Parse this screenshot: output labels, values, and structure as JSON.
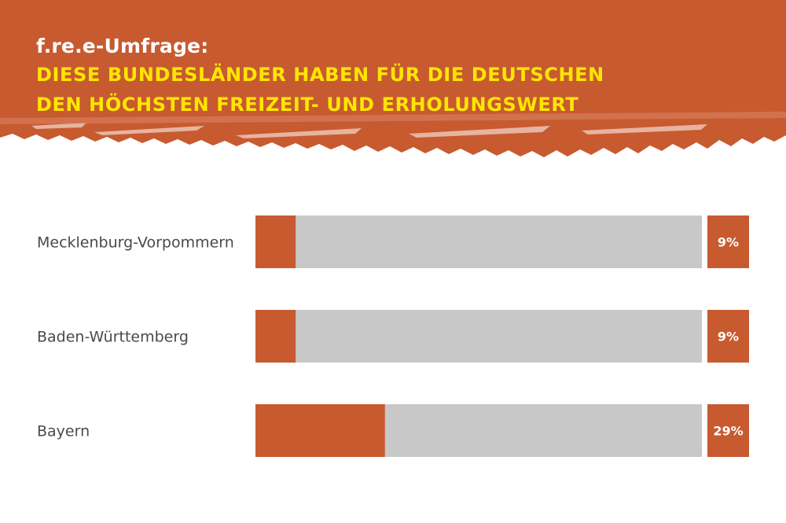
{
  "header": {
    "subtitle": "f.re.e-Umfrage:",
    "headline_line1": "DIESE BUNDESLÄNDER HABEN FÜR DIE DEUTSCHEN",
    "headline_line2": "DEN HÖCHSTEN FREIZEIT- UND ERHOLUNGSWERT"
  },
  "colors": {
    "accent": "#c85a30",
    "headline": "#ffe600",
    "track": "#c8c8c8",
    "label": "#4a4a4a",
    "value_text": "#ffffff"
  },
  "chart_data": {
    "type": "bar",
    "orientation": "horizontal",
    "title": "DIESE BUNDESLÄNDER HABEN FÜR DIE DEUTSCHEN DEN HÖCHSTEN FREIZEIT- UND ERHOLUNGSWERT",
    "categories": [
      "Mecklenburg-Vorpommern",
      "Baden-Württemberg",
      "Bayern"
    ],
    "values": [
      9,
      9,
      29
    ],
    "value_labels": [
      "9%",
      "9%",
      "29%"
    ],
    "unit": "%",
    "xlim": [
      0,
      100
    ],
    "grid": false
  }
}
